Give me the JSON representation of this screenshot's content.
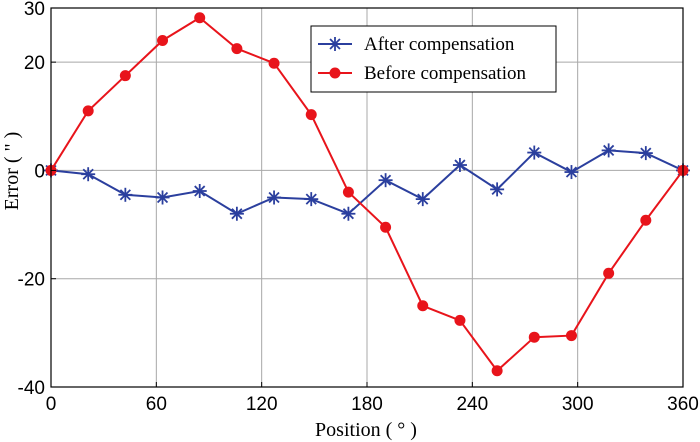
{
  "chart_data": {
    "type": "line",
    "title": "",
    "xlabel": "Position ( ° )",
    "ylabel": "Error ( \" )",
    "xlim": [
      0,
      360
    ],
    "ylim": [
      -40,
      30
    ],
    "xticks": [
      0,
      60,
      120,
      180,
      240,
      300,
      360
    ],
    "yticks": [
      -40,
      -20,
      0,
      20,
      30
    ],
    "grid": true,
    "legend_position": "top-right",
    "series": [
      {
        "name": "After compensation",
        "color": "#2b3f9e",
        "marker": "asterisk",
        "x": [
          0,
          21.18,
          42.35,
          63.53,
          84.71,
          105.88,
          127.06,
          148.24,
          169.41,
          190.59,
          211.76,
          232.94,
          254.12,
          275.29,
          296.47,
          317.65,
          338.82,
          360
        ],
        "y": [
          0,
          -0.7,
          -4.5,
          -5.0,
          -3.8,
          -8.0,
          -5.0,
          -5.3,
          -8.0,
          -1.8,
          -5.3,
          1.0,
          -3.5,
          3.3,
          -0.3,
          3.7,
          3.2,
          0
        ]
      },
      {
        "name": "Before compensation",
        "color": "#e8141b",
        "marker": "circle",
        "x": [
          0,
          21.18,
          42.35,
          63.53,
          84.71,
          105.88,
          127.06,
          148.24,
          169.41,
          190.59,
          211.76,
          232.94,
          254.12,
          275.29,
          296.47,
          317.65,
          338.82,
          360
        ],
        "y": [
          0,
          11.0,
          17.5,
          24.0,
          28.2,
          22.5,
          19.8,
          10.3,
          -4.0,
          -10.5,
          -25.0,
          -27.7,
          -37.0,
          -30.8,
          -30.5,
          -19.0,
          -9.2,
          0
        ]
      }
    ]
  }
}
